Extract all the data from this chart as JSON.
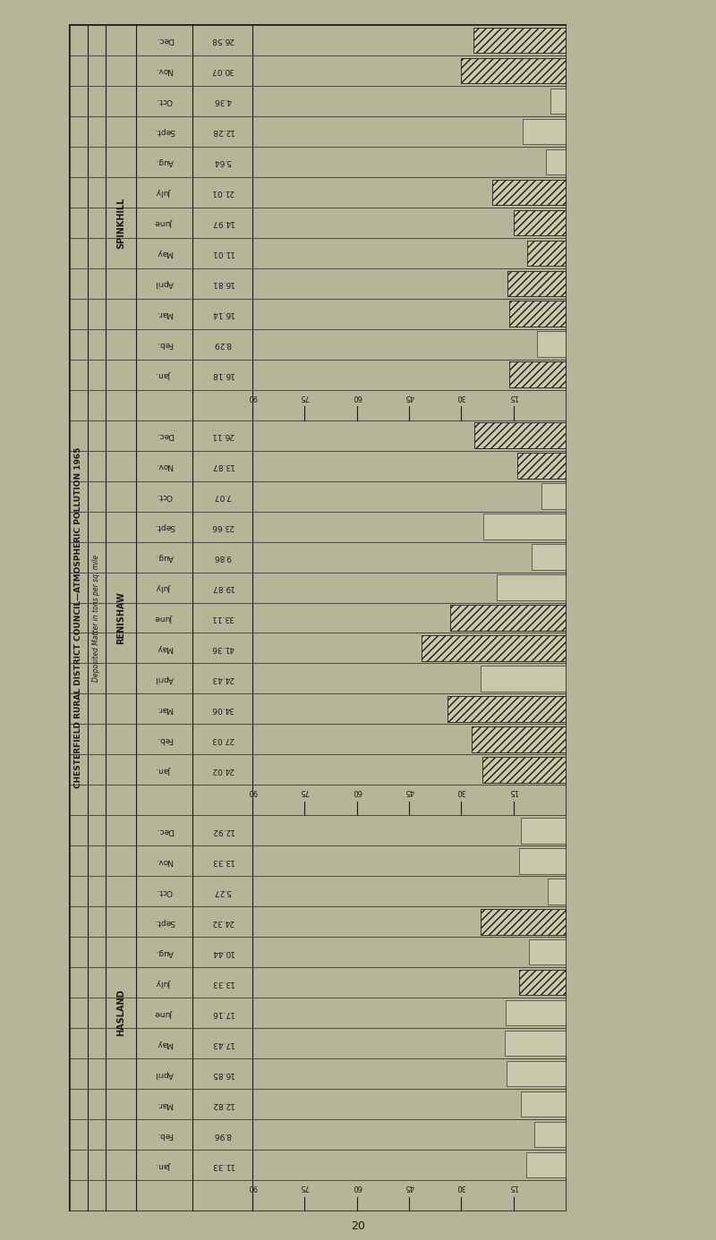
{
  "background_color": "#b5b598",
  "border_color": "#1a1a1a",
  "text_color": "#1a1a1a",
  "bar_face_color": "#c8c8aa",
  "sections": [
    {
      "name": "SPINKHILL",
      "months": [
        "Dec.",
        "Nov.",
        "Oct.",
        "Sept.",
        "Aug.",
        "July",
        "June",
        "May",
        "April",
        "Mar.",
        "Feb.",
        "Jan."
      ],
      "values": [
        26.58,
        30.07,
        4.36,
        12.28,
        5.64,
        21.01,
        14.97,
        11.01,
        16.81,
        16.14,
        8.29,
        16.18
      ],
      "hatch_flags": [
        1,
        1,
        0,
        0,
        0,
        1,
        1,
        1,
        1,
        1,
        0,
        1
      ]
    },
    {
      "name": "RENISHAW",
      "months": [
        "Dec.",
        "Nov.",
        "Oct.",
        "Sept.",
        "Aug.",
        "July",
        "June",
        "May",
        "April",
        "Mar.",
        "Feb.",
        "Jan."
      ],
      "values": [
        26.11,
        13.87,
        7.07,
        23.66,
        9.86,
        19.87,
        33.11,
        41.36,
        24.43,
        34.06,
        27.03,
        24.02
      ],
      "hatch_flags": [
        1,
        1,
        0,
        0,
        0,
        0,
        1,
        1,
        0,
        1,
        1,
        1
      ]
    },
    {
      "name": "HASLAND",
      "months": [
        "Dec.",
        "Nov.",
        "Oct.",
        "Sept.",
        "Aug.",
        "July",
        "June",
        "May",
        "April",
        "Mar.",
        "Feb.",
        "Jan."
      ],
      "values": [
        12.92,
        13.33,
        5.27,
        24.32,
        10.44,
        13.33,
        17.16,
        17.43,
        16.85,
        12.82,
        8.96,
        11.33
      ],
      "hatch_flags": [
        0,
        0,
        0,
        1,
        0,
        1,
        0,
        0,
        0,
        0,
        0,
        0
      ]
    }
  ],
  "scale_max": 90,
  "scale_ticks": [
    90,
    75,
    60,
    45,
    30,
    15
  ],
  "title_vertical": "CHESTERFIELD RURAL DISTRICT COUNCIL—ATMOSPHERIC POLLUTION 1965",
  "subtitle_vertical": "Deposited Matter in tons per sq. mile",
  "page_number": "20"
}
